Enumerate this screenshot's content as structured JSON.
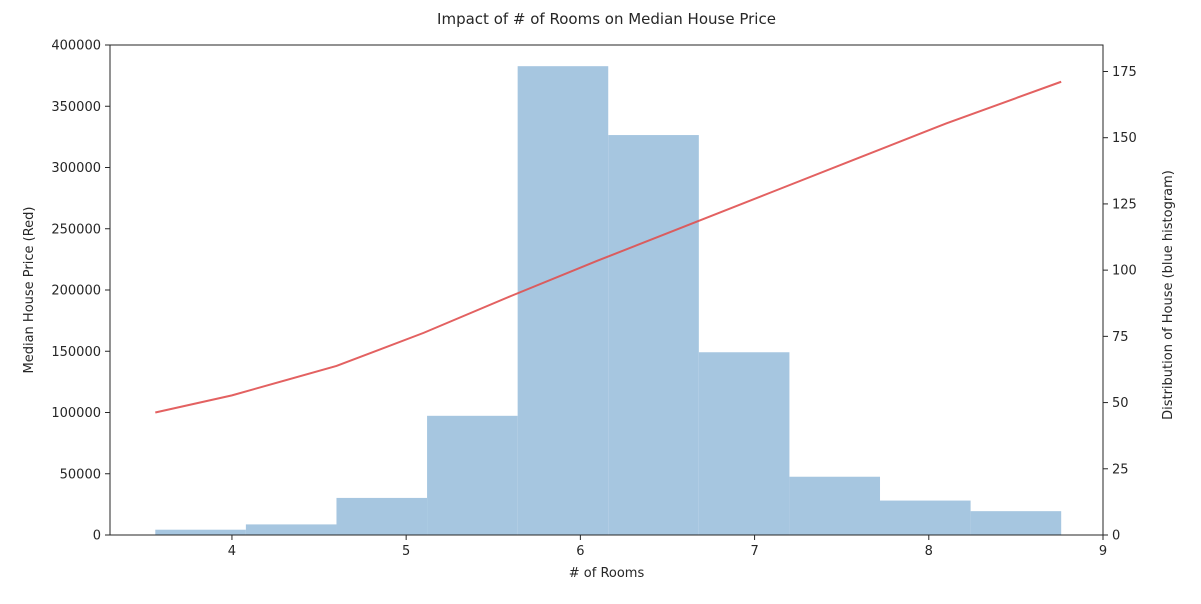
{
  "chart_data": {
    "type": "bar",
    "title": "Impact of # of Rooms on Median House Price",
    "xlabel": "# of Rooms",
    "ylabel_left": "Median House Price (Red)",
    "ylabel_right": "Distribution of House (blue histogram)",
    "xlim": [
      3.3,
      9.0
    ],
    "ylim_left": [
      0,
      400000
    ],
    "ylim_right": [
      0,
      185
    ],
    "x_ticks": [
      4,
      5,
      6,
      7,
      8,
      9
    ],
    "y_left_ticks": [
      0,
      50000,
      100000,
      150000,
      200000,
      250000,
      300000,
      350000,
      400000
    ],
    "y_right_ticks": [
      0,
      25,
      50,
      75,
      100,
      125,
      150,
      175
    ],
    "histogram": {
      "name": "",
      "color": "#a6c6e0",
      "bins": [
        {
          "x0": 3.56,
          "x1": 4.08,
          "count": 2
        },
        {
          "x0": 4.08,
          "x1": 4.6,
          "count": 4
        },
        {
          "x0": 4.6,
          "x1": 5.12,
          "count": 14
        },
        {
          "x0": 5.12,
          "x1": 5.64,
          "count": 45
        },
        {
          "x0": 5.64,
          "x1": 6.16,
          "count": 177
        },
        {
          "x0": 6.16,
          "x1": 6.68,
          "count": 151
        },
        {
          "x0": 6.68,
          "x1": 7.2,
          "count": 69
        },
        {
          "x0": 7.2,
          "x1": 7.72,
          "count": 22
        },
        {
          "x0": 7.72,
          "x1": 8.24,
          "count": 13
        },
        {
          "x0": 8.24,
          "x1": 8.76,
          "count": 9
        }
      ]
    },
    "line": {
      "name": "",
      "color": "#e05050",
      "x": [
        3.56,
        4.0,
        4.6,
        5.1,
        5.6,
        6.1,
        6.6,
        7.1,
        7.6,
        8.1,
        8.76
      ],
      "y": [
        100000,
        114000,
        138000,
        165000,
        195000,
        224000,
        252000,
        280000,
        308000,
        336000,
        370000
      ]
    }
  }
}
